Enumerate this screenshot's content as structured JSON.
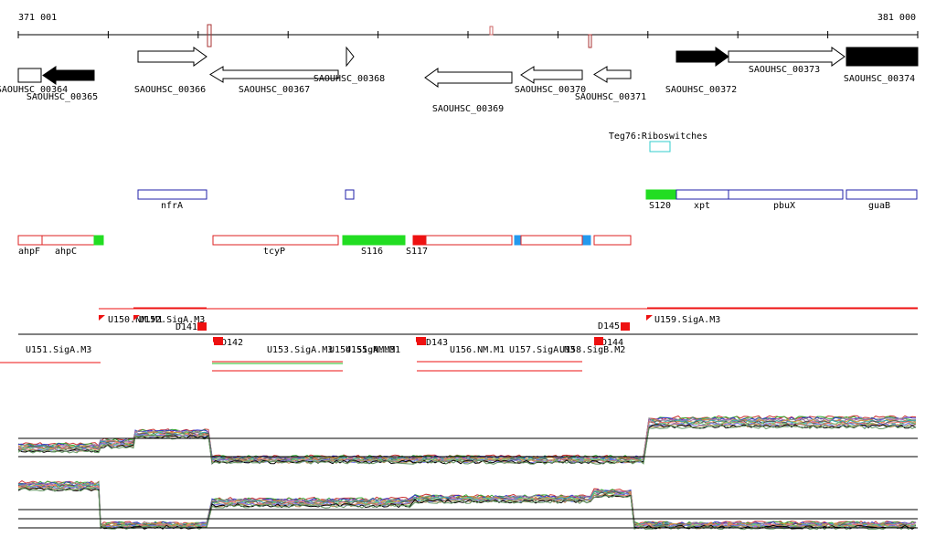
{
  "ruler": {
    "start": "371 001",
    "end": "381 000"
  },
  "genes": [
    "SAOUHSC_00364",
    "SAOUHSC_00365",
    "SAOUHSC_00366",
    "SAOUHSC_00367",
    "SAOUHSC_00368",
    "SAOUHSC_00369",
    "SAOUHSC_00370",
    "SAOUHSC_00371",
    "SAOUHSC_00372",
    "SAOUHSC_00373",
    "SAOUHSC_00374"
  ],
  "riboswitch": "Teg76:Riboswitches",
  "operons": [
    "nfrA",
    "S120",
    "xpt",
    "pbuX",
    "guaB"
  ],
  "transcripts": [
    "ahpF",
    "ahpC",
    "tcyP",
    "S116",
    "S117"
  ],
  "promoters": [
    "U150.NM.M1",
    "U152.SigA.M3",
    "D141",
    "U151.SigA.M3",
    "D142",
    "U153.SigA.M3",
    "U154.SigA.M3",
    "U155.NM.M1",
    "D143",
    "U156.NM.M1",
    "U157.SigA.M3",
    "U158.SigB.M2",
    "D145",
    "D144",
    "U159.SigA.M3"
  ]
}
